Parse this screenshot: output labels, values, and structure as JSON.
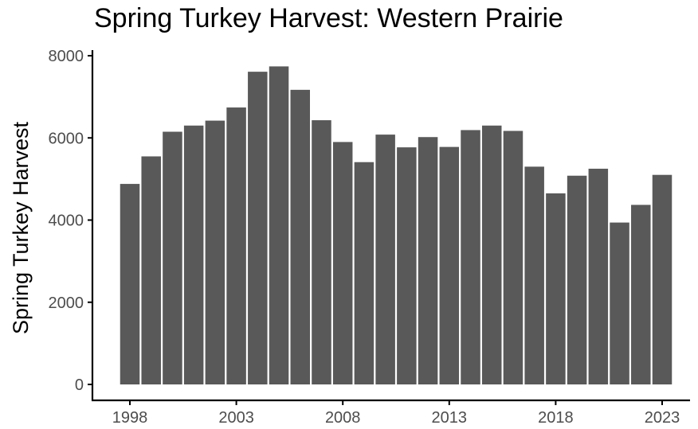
{
  "chart_data": {
    "type": "bar",
    "title": "Spring Turkey Harvest: Western Prairie",
    "xlabel": "",
    "ylabel": "Spring Turkey Harvest",
    "x": [
      1998,
      1999,
      2000,
      2001,
      2002,
      2003,
      2004,
      2005,
      2006,
      2007,
      2008,
      2009,
      2010,
      2011,
      2012,
      2013,
      2014,
      2015,
      2016,
      2017,
      2018,
      2019,
      2020,
      2021,
      2022,
      2023
    ],
    "values": [
      4880,
      5550,
      6150,
      6300,
      6420,
      6740,
      7610,
      7740,
      7170,
      6430,
      5900,
      5410,
      6080,
      5770,
      6020,
      5780,
      6190,
      6300,
      6170,
      5300,
      4650,
      5080,
      5250,
      3940,
      4370,
      5100
    ],
    "xticks": [
      "1998",
      "2003",
      "2008",
      "2013",
      "2018",
      "2023"
    ],
    "yticks": [
      "0",
      "2000",
      "4000",
      "6000",
      "8000"
    ],
    "ylim": [
      0,
      8000
    ],
    "grid": false,
    "legend": "none",
    "bar_color": "#595959",
    "axis_color": "#000000",
    "tick_label_color": "#4d4d4d"
  }
}
